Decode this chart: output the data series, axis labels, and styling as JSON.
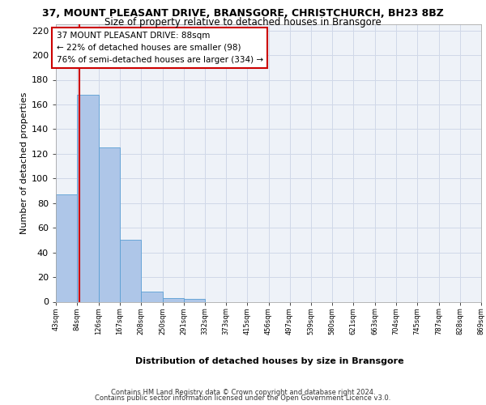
{
  "title": "37, MOUNT PLEASANT DRIVE, BRANSGORE, CHRISTCHURCH, BH23 8BZ",
  "subtitle": "Size of property relative to detached houses in Bransgore",
  "xlabel_bottom": "Distribution of detached houses by size in Bransgore",
  "ylabel": "Number of detached properties",
  "bar_values": [
    87,
    168,
    125,
    50,
    8,
    3,
    2,
    0,
    0,
    0,
    0,
    0,
    0,
    0,
    0,
    0,
    0,
    0,
    0,
    0
  ],
  "bin_edges": [
    43,
    84,
    126,
    167,
    208,
    250,
    291,
    332,
    373,
    415,
    456,
    497,
    539,
    580,
    621,
    663,
    704,
    745,
    787,
    828,
    869
  ],
  "tick_labels": [
    "43sqm",
    "84sqm",
    "126sqm",
    "167sqm",
    "208sqm",
    "250sqm",
    "291sqm",
    "332sqm",
    "373sqm",
    "415sqm",
    "456sqm",
    "497sqm",
    "539sqm",
    "580sqm",
    "621sqm",
    "663sqm",
    "704sqm",
    "745sqm",
    "787sqm",
    "828sqm",
    "869sqm"
  ],
  "bar_color": "#aec6e8",
  "bar_edge_color": "#5a9fd4",
  "grid_color": "#d0d8e8",
  "property_line_x": 88,
  "property_line_color": "#cc0000",
  "annotation_text": "37 MOUNT PLEASANT DRIVE: 88sqm\n← 22% of detached houses are smaller (98)\n76% of semi-detached houses are larger (334) →",
  "annotation_box_color": "#cc0000",
  "ylim": [
    0,
    225
  ],
  "yticks": [
    0,
    20,
    40,
    60,
    80,
    100,
    120,
    140,
    160,
    180,
    200,
    220
  ],
  "footer_line1": "Contains HM Land Registry data © Crown copyright and database right 2024.",
  "footer_line2": "Contains public sector information licensed under the Open Government Licence v3.0.",
  "background_color": "#eef2f8",
  "title_fontsize": 9,
  "subtitle_fontsize": 8.5,
  "ylabel_fontsize": 8,
  "ytick_fontsize": 8,
  "xtick_fontsize": 6,
  "annotation_fontsize": 7.5,
  "footer_fontsize": 6,
  "xlabel_fontsize": 8
}
